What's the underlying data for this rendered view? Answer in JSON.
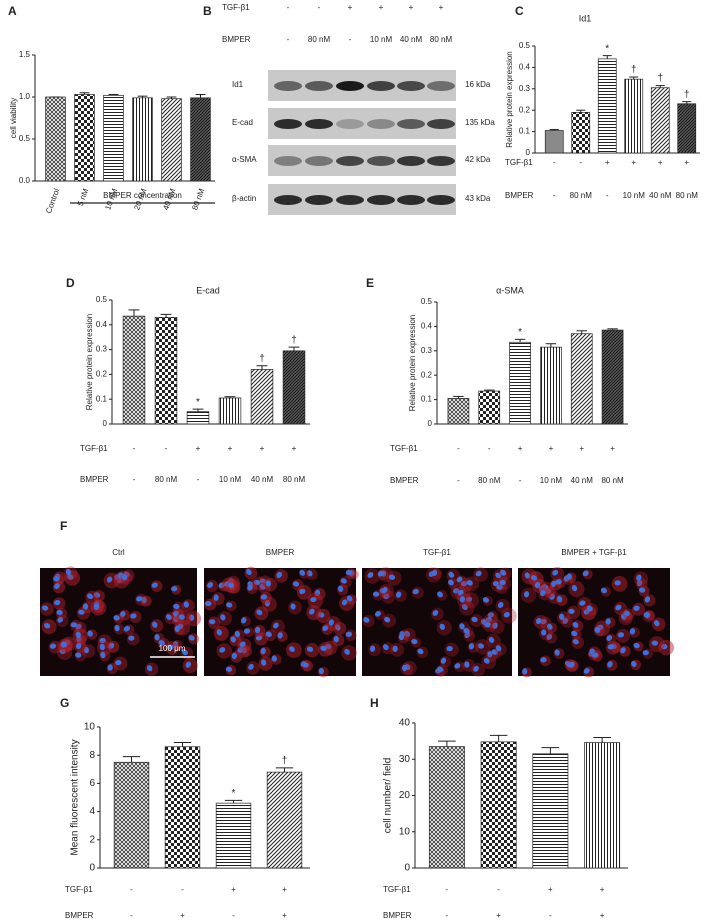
{
  "chart_data": [
    {
      "type": "bar",
      "label": "A",
      "ylabel": "cell viability",
      "categories": [
        "Control",
        "5 nM",
        "10 nM",
        "20 nM",
        "40 nM",
        "80 nM"
      ],
      "values": [
        1.0,
        1.03,
        1.02,
        0.99,
        0.98,
        0.99
      ],
      "errors": [
        0.0,
        0.02,
        0.01,
        0.02,
        0.02,
        0.04
      ],
      "group_label": "BMPER concentration",
      "patterns": [
        "crosshatch",
        "checker",
        "hlines",
        "vlines",
        "diag",
        "diag-dense"
      ],
      "ylim": [
        0,
        1.5
      ],
      "yticks": [
        {
          "value": 0,
          "label": "0.0"
        },
        0.5,
        {
          "value": 1,
          "label": "1.0"
        },
        1.5
      ]
    },
    {
      "type": "bar",
      "label": "C",
      "title": "Id1",
      "ylabel": "Relative protein expression",
      "values": [
        0.105,
        0.19,
        0.44,
        0.345,
        0.305,
        0.23
      ],
      "errors": [
        0.005,
        0.01,
        0.015,
        0.01,
        0.01,
        0.01
      ],
      "annotations": [
        null,
        null,
        "*",
        "†",
        "†",
        "†"
      ],
      "conditions": [
        {
          "name": "TGF-β1",
          "values": [
            "-",
            "-",
            "+",
            "+",
            "+",
            "+"
          ]
        },
        {
          "name": "BMPER",
          "values": [
            "-",
            "80 nM",
            "-",
            "10 nM",
            "40 nM",
            "80 nM"
          ]
        }
      ],
      "patterns": [
        "gray",
        "checker",
        "hlines",
        "vlines",
        "diag",
        "diag-dense"
      ],
      "ylim": [
        0,
        0.5
      ],
      "yticks": [
        0,
        0.1,
        0.2,
        0.3,
        0.4,
        0.5
      ]
    },
    {
      "type": "bar",
      "label": "D",
      "title": "E-cad",
      "ylabel": "Relative protein expression",
      "values": [
        0.435,
        0.43,
        0.05,
        0.105,
        0.22,
        0.295
      ],
      "errors": [
        0.025,
        0.012,
        0.01,
        0.005,
        0.015,
        0.015
      ],
      "annotations": [
        null,
        null,
        "*",
        null,
        "†",
        "†"
      ],
      "conditions": [
        {
          "name": "TGF-β1",
          "values": [
            "-",
            "-",
            "+",
            "+",
            "+",
            "+"
          ]
        },
        {
          "name": "BMPER",
          "values": [
            "-",
            "80 nM",
            "-",
            "10 nM",
            "40 nM",
            "80 nM"
          ]
        }
      ],
      "patterns": [
        "crosshatch",
        "checker",
        "hlines",
        "vlines",
        "diag",
        "diag-dense"
      ],
      "ylim": [
        0,
        0.5
      ],
      "yticks": [
        0,
        0.1,
        0.2,
        0.3,
        0.4,
        0.5
      ]
    },
    {
      "type": "bar",
      "label": "E",
      "title": "α-SMA",
      "ylabel": "Relative protein expression",
      "values": [
        0.105,
        0.135,
        0.335,
        0.315,
        0.37,
        0.385
      ],
      "errors": [
        0.008,
        0.004,
        0.012,
        0.014,
        0.012,
        0.005
      ],
      "annotations": [
        null,
        null,
        "*",
        null,
        null,
        null
      ],
      "conditions": [
        {
          "name": "TGF-β1",
          "values": [
            "-",
            "-",
            "+",
            "+",
            "+",
            "+"
          ]
        },
        {
          "name": "BMPER",
          "values": [
            "-",
            "80 nM",
            "-",
            "10 nM",
            "40 nM",
            "80 nM"
          ]
        }
      ],
      "patterns": [
        "crosshatch",
        "checker",
        "hlines",
        "vlines",
        "diag",
        "diag-dense"
      ],
      "ylim": [
        0,
        0.5
      ],
      "yticks": [
        0,
        0.1,
        0.2,
        0.3,
        0.4,
        0.5
      ]
    },
    {
      "type": "bar",
      "label": "G",
      "ylabel": "Mean fluorescent intensity",
      "values": [
        7.5,
        8.6,
        4.6,
        6.8
      ],
      "errors": [
        0.4,
        0.3,
        0.2,
        0.3
      ],
      "annotations": [
        null,
        null,
        "*",
        "†"
      ],
      "conditions": [
        {
          "name": "TGF-β1",
          "values": [
            "-",
            "-",
            "+",
            "+"
          ]
        },
        {
          "name": "BMPER",
          "values": [
            "-",
            "+",
            "-",
            "+"
          ]
        }
      ],
      "patterns": [
        "crosshatch",
        "checker",
        "hlines",
        "diag"
      ],
      "ylim": [
        0,
        10
      ],
      "yticks": [
        0,
        2,
        4,
        6,
        8,
        10
      ]
    },
    {
      "type": "bar",
      "label": "H",
      "ylabel": "cell number/ field",
      "values": [
        33.5,
        34.8,
        31.5,
        34.6
      ],
      "errors": [
        1.5,
        1.8,
        1.7,
        1.4
      ],
      "conditions": [
        {
          "name": "TGF-β1",
          "values": [
            "-",
            "-",
            "+",
            "+"
          ]
        },
        {
          "name": "BMPER",
          "values": [
            "-",
            "+",
            "-",
            "+"
          ]
        }
      ],
      "patterns": [
        "crosshatch",
        "checker",
        "hlines",
        "vlines"
      ],
      "ylim": [
        0,
        40
      ],
      "yticks": [
        0,
        10,
        20,
        30,
        40
      ]
    }
  ],
  "blot": {
    "label": "B",
    "conditions": [
      {
        "name": "TGF-β1",
        "values": [
          "-",
          "-",
          "+",
          "+",
          "+",
          "+"
        ]
      },
      {
        "name": "BMPER",
        "values": [
          "-",
          "80 nM",
          "-",
          "10 nM",
          "40 nM",
          "80 nM"
        ]
      }
    ],
    "bands": [
      {
        "name": "Id1",
        "size": "16 kDa"
      },
      {
        "name": "E-cad",
        "size": "135 kDa"
      },
      {
        "name": "α-SMA",
        "size": "42 kDa"
      },
      {
        "name": "β-actin",
        "size": "43 kDa"
      }
    ]
  },
  "micrographs": {
    "label": "F",
    "titles": [
      "Ctrl",
      "BMPER",
      "TGF-β1",
      "BMPER + TGF-β1"
    ],
    "scale_bar": "100 μm"
  }
}
